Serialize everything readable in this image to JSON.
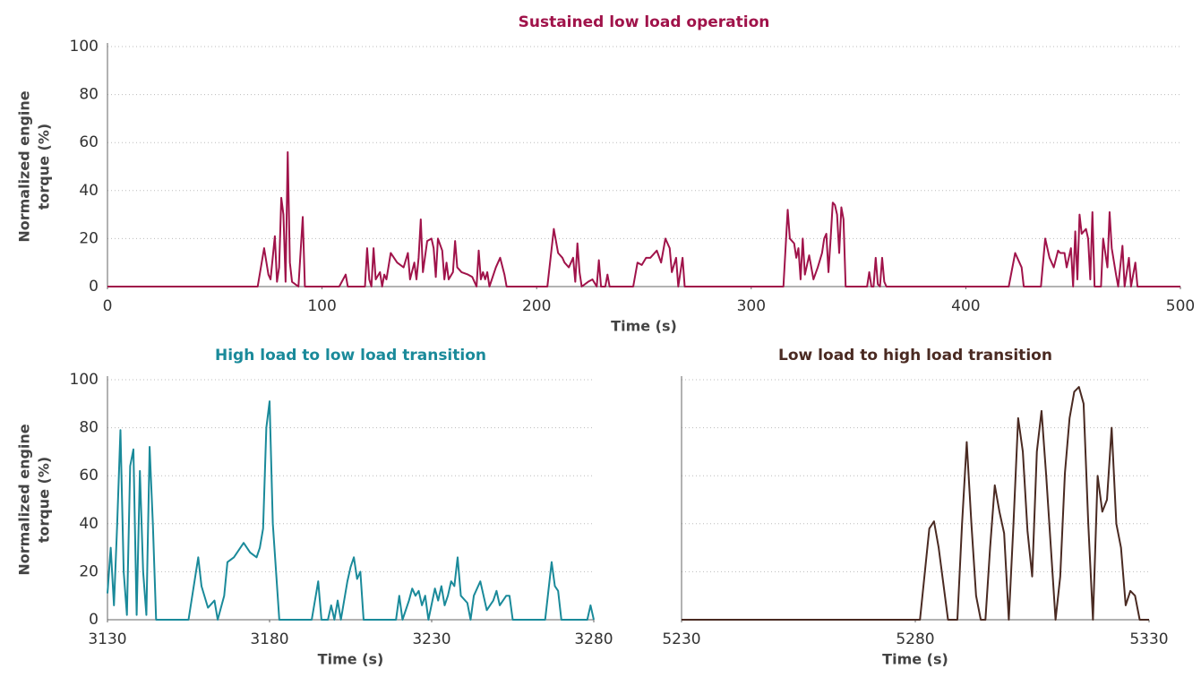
{
  "chart_data": [
    {
      "type": "line",
      "title": "Sustained low load operation",
      "xlabel": "Time (s)",
      "ylabel": [
        "Normalized engine",
        "torque (%)"
      ],
      "xlim": [
        0,
        500
      ],
      "xticks": [
        0,
        100,
        200,
        300,
        400,
        500
      ],
      "ylim": [
        0,
        100
      ],
      "yticks": [
        0,
        20,
        40,
        60,
        80,
        100
      ],
      "grid": true,
      "show_ytick_labels": true,
      "series": [
        {
          "color": "#a0134a",
          "x": [
            0,
            70,
            73,
            75,
            76,
            78,
            79,
            80,
            81,
            82,
            83,
            84,
            85,
            86,
            89,
            91,
            92,
            108,
            111,
            112,
            120,
            121,
            122,
            123,
            124,
            125,
            127,
            128,
            129,
            130,
            132,
            135,
            138,
            140,
            141,
            143,
            144,
            145,
            146,
            147,
            149,
            151,
            152,
            153,
            154,
            156,
            157,
            158,
            159,
            161,
            162,
            163,
            165,
            168,
            170,
            172,
            173,
            174,
            175,
            176,
            177,
            178,
            181,
            183,
            185,
            186,
            205,
            208,
            210,
            212,
            213,
            215,
            217,
            218,
            219,
            220,
            221,
            224,
            226,
            228,
            229,
            230,
            232,
            233,
            234,
            245,
            247,
            249,
            251,
            253,
            256,
            258,
            260,
            262,
            263,
            265,
            266,
            268,
            269,
            315,
            317,
            318,
            320,
            321,
            322,
            323,
            324,
            325,
            327,
            329,
            331,
            333,
            334,
            335,
            336,
            337,
            338,
            339,
            340,
            341,
            342,
            343,
            344,
            354,
            355,
            356,
            357,
            358,
            359,
            360,
            361,
            362,
            363,
            420,
            423,
            426,
            427,
            435,
            437,
            439,
            441,
            443,
            444,
            446,
            447,
            449,
            450,
            451,
            452,
            453,
            454,
            456,
            457,
            458,
            459,
            460,
            463,
            464,
            466,
            467,
            468,
            470,
            471,
            473,
            474,
            476,
            477,
            479,
            480,
            500
          ],
          "values": [
            0,
            0,
            16,
            5,
            3,
            21,
            2,
            8,
            37,
            30,
            2,
            56,
            10,
            2,
            0,
            29,
            0,
            0,
            5,
            0,
            0,
            16,
            3,
            0,
            16,
            3,
            6,
            0,
            5,
            3,
            14,
            10,
            8,
            14,
            3,
            10,
            3,
            12,
            28,
            6,
            19,
            20,
            16,
            4,
            20,
            15,
            3,
            10,
            3,
            6,
            19,
            8,
            6,
            5,
            4,
            0,
            15,
            3,
            6,
            3,
            6,
            0,
            8,
            12,
            5,
            0,
            0,
            24,
            14,
            12,
            10,
            8,
            12,
            2,
            18,
            6,
            0,
            2,
            3,
            0,
            11,
            0,
            0,
            5,
            0,
            0,
            10,
            9,
            12,
            12,
            15,
            10,
            20,
            16,
            6,
            12,
            0,
            12,
            0,
            0,
            32,
            20,
            18,
            12,
            16,
            3,
            20,
            5,
            13,
            3,
            8,
            14,
            20,
            22,
            6,
            20,
            35,
            34,
            30,
            14,
            33,
            28,
            0,
            0,
            6,
            0,
            0,
            12,
            1,
            0,
            12,
            2,
            0,
            0,
            14,
            8,
            0,
            0,
            20,
            12,
            8,
            15,
            14,
            14,
            8,
            16,
            0,
            23,
            3,
            30,
            22,
            24,
            20,
            3,
            31,
            0,
            0,
            20,
            8,
            31,
            16,
            5,
            0,
            17,
            0,
            12,
            0,
            10,
            0,
            0
          ]
        }
      ]
    },
    {
      "type": "line",
      "title": "High load to low load transition",
      "xlabel": "Time (s)",
      "ylabel": [
        "Normalized engine",
        "torque (%)"
      ],
      "xlim": [
        3130,
        3280
      ],
      "xticks": [
        3130,
        3180,
        3230,
        3280
      ],
      "ylim": [
        0,
        100
      ],
      "yticks": [
        0,
        20,
        40,
        60,
        80,
        100
      ],
      "grid": true,
      "show_ytick_labels": true,
      "series": [
        {
          "color": "#1a8a9a",
          "x": [
            3130,
            3131,
            3132,
            3133,
            3134,
            3135,
            3136,
            3137,
            3138,
            3139,
            3140,
            3141,
            3142,
            3143,
            3144,
            3145,
            3155,
            3158,
            3159,
            3161,
            3163,
            3164,
            3166,
            3167,
            3169,
            3170,
            3172,
            3174,
            3176,
            3177,
            3178,
            3179,
            3180,
            3181,
            3183,
            3193,
            3195,
            3196,
            3198,
            3199,
            3200,
            3201,
            3202,
            3204,
            3205,
            3206,
            3207,
            3208,
            3209,
            3219,
            3220,
            3221,
            3223,
            3224,
            3225,
            3226,
            3227,
            3228,
            3229,
            3231,
            3232,
            3233,
            3234,
            3235,
            3236,
            3237,
            3238,
            3239,
            3241,
            3242,
            3243,
            3245,
            3246,
            3247,
            3249,
            3250,
            3251,
            3253,
            3254,
            3255,
            3265,
            3267,
            3268,
            3269,
            3270,
            3278,
            3279,
            3280
          ],
          "values": [
            11,
            30,
            6,
            40,
            79,
            20,
            2,
            64,
            71,
            2,
            62,
            20,
            2,
            72,
            40,
            0,
            0,
            26,
            14,
            5,
            8,
            0,
            10,
            24,
            26,
            28,
            32,
            28,
            26,
            30,
            38,
            80,
            91,
            40,
            0,
            0,
            16,
            0,
            0,
            6,
            0,
            8,
            0,
            16,
            22,
            26,
            17,
            20,
            0,
            0,
            10,
            0,
            8,
            13,
            10,
            12,
            6,
            10,
            0,
            13,
            8,
            14,
            6,
            10,
            16,
            14,
            26,
            10,
            7,
            0,
            10,
            16,
            10,
            4,
            8,
            12,
            6,
            10,
            10,
            0,
            0,
            24,
            14,
            12,
            0,
            0,
            6,
            0
          ]
        }
      ]
    },
    {
      "type": "line",
      "title": "Low load to high load transition",
      "xlabel": "Time (s)",
      "xlim": [
        5230,
        5330
      ],
      "xticks": [
        5230,
        5280,
        5330
      ],
      "ylim": [
        0,
        100
      ],
      "yticks": [
        0,
        20,
        40,
        60,
        80,
        100
      ],
      "grid": true,
      "show_ytick_labels": false,
      "series": [
        {
          "color": "#4a2a22",
          "x": [
            5230,
            5281,
            5283,
            5284,
            5285,
            5287,
            5289,
            5290,
            5291,
            5292,
            5293,
            5294,
            5295,
            5296,
            5297,
            5298,
            5299,
            5300,
            5301,
            5302,
            5303,
            5304,
            5305,
            5306,
            5307,
            5308,
            5309,
            5310,
            5311,
            5312,
            5313,
            5314,
            5315,
            5316,
            5317,
            5318,
            5319,
            5320,
            5321,
            5322,
            5323,
            5324,
            5325,
            5326,
            5327,
            5328,
            5330
          ],
          "values": [
            0,
            0,
            38,
            41,
            30,
            0,
            0,
            40,
            74,
            40,
            10,
            0,
            0,
            30,
            56,
            45,
            36,
            0,
            40,
            84,
            70,
            37,
            18,
            70,
            87,
            60,
            30,
            0,
            18,
            61,
            84,
            95,
            97,
            90,
            40,
            0,
            60,
            45,
            50,
            80,
            40,
            30,
            6,
            12,
            10,
            0,
            0
          ]
        }
      ]
    }
  ]
}
